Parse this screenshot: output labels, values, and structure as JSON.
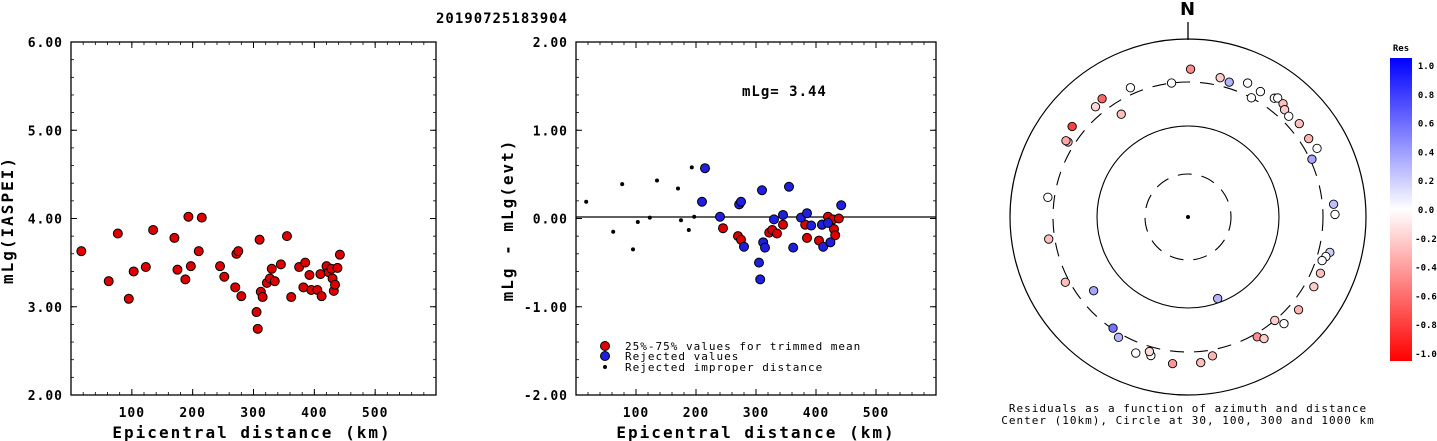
{
  "title": "20190725183904",
  "colors": {
    "trimmed": "#dd0000",
    "rejected": "#1f1fdd",
    "improper": "#000000"
  },
  "chart_data": [
    {
      "type": "scatter",
      "xlabel": "Epicentral distance (km)",
      "ylabel": "mLg(IASPEI)",
      "xlim": [
        0,
        600
      ],
      "ylim": [
        2.0,
        6.0
      ],
      "xticks": [
        "100",
        "200",
        "300",
        "400",
        "500"
      ],
      "yticks": [
        "2.00",
        "3.00",
        "4.00",
        "5.00",
        "6.00"
      ],
      "points": [
        [
          17,
          3.63
        ],
        [
          62,
          3.29
        ],
        [
          77,
          3.83
        ],
        [
          95,
          3.09
        ],
        [
          103,
          3.4
        ],
        [
          123,
          3.45
        ],
        [
          135,
          3.87
        ],
        [
          170,
          3.78
        ],
        [
          175,
          3.42
        ],
        [
          188,
          3.31
        ],
        [
          193,
          4.02
        ],
        [
          197,
          3.46
        ],
        [
          210,
          3.63
        ],
        [
          215,
          4.01
        ],
        [
          245,
          3.46
        ],
        [
          252,
          3.34
        ],
        [
          270,
          3.22
        ],
        [
          272,
          3.6
        ],
        [
          275,
          3.63
        ],
        [
          280,
          3.12
        ],
        [
          305,
          2.94
        ],
        [
          307,
          2.75
        ],
        [
          310,
          3.76
        ],
        [
          312,
          3.17
        ],
        [
          315,
          3.11
        ],
        [
          322,
          3.27
        ],
        [
          327,
          3.32
        ],
        [
          330,
          3.43
        ],
        [
          335,
          3.29
        ],
        [
          345,
          3.48
        ],
        [
          355,
          3.8
        ],
        [
          362,
          3.11
        ],
        [
          375,
          3.45
        ],
        [
          382,
          3.22
        ],
        [
          385,
          3.5
        ],
        [
          392,
          3.36
        ],
        [
          395,
          3.19
        ],
        [
          405,
          3.19
        ],
        [
          410,
          3.37
        ],
        [
          412,
          3.12
        ],
        [
          420,
          3.46
        ],
        [
          424,
          3.39
        ],
        [
          428,
          3.43
        ],
        [
          430,
          3.32
        ],
        [
          432,
          3.18
        ],
        [
          434,
          3.25
        ],
        [
          438,
          3.44
        ],
        [
          442,
          3.59
        ]
      ]
    },
    {
      "type": "scatter",
      "xlabel": "Epicentral distance (km)",
      "ylabel": "mLg - mLg(evt)",
      "xlim": [
        0,
        600
      ],
      "ylim": [
        -2.0,
        2.0
      ],
      "xticks": [
        "100",
        "200",
        "300",
        "400",
        "500"
      ],
      "yticks": [
        "-2.00",
        "-1.00",
        "0.00",
        "1.00",
        "2.00"
      ],
      "annotation": "mLg= 3.44",
      "legend_position": "bottom-left",
      "series": [
        {
          "name": "25%-75% values for trimmed mean",
          "points": [
            [
              245,
              -0.11
            ],
            [
              270,
              -0.2
            ],
            [
              275,
              -0.24
            ],
            [
              322,
              -0.16
            ],
            [
              327,
              -0.13
            ],
            [
              335,
              -0.17
            ],
            [
              345,
              -0.07
            ],
            [
              382,
              -0.07
            ],
            [
              385,
              -0.22
            ],
            [
              405,
              -0.25
            ],
            [
              410,
              -0.07
            ],
            [
              420,
              0.02
            ],
            [
              424,
              -0.05
            ],
            [
              428,
              -0.01
            ],
            [
              430,
              -0.12
            ],
            [
              432,
              -0.19
            ],
            [
              438,
              0.0
            ]
          ]
        },
        {
          "name": "Rejected values",
          "points": [
            [
              210,
              0.19
            ],
            [
              215,
              0.57
            ],
            [
              240,
              0.02
            ],
            [
              272,
              0.16
            ],
            [
              275,
              0.19
            ],
            [
              280,
              -0.32
            ],
            [
              305,
              -0.5
            ],
            [
              307,
              -0.69
            ],
            [
              310,
              0.32
            ],
            [
              312,
              -0.27
            ],
            [
              315,
              -0.33
            ],
            [
              330,
              -0.01
            ],
            [
              345,
              0.04
            ],
            [
              355,
              0.36
            ],
            [
              362,
              -0.33
            ],
            [
              375,
              0.01
            ],
            [
              385,
              0.06
            ],
            [
              392,
              -0.08
            ],
            [
              410,
              -0.07
            ],
            [
              412,
              -0.32
            ],
            [
              420,
              -0.05
            ],
            [
              424,
              -0.27
            ],
            [
              442,
              0.15
            ]
          ]
        },
        {
          "name": "Rejected improper distance",
          "points": [
            [
              17,
              0.19
            ],
            [
              62,
              -0.15
            ],
            [
              77,
              0.39
            ],
            [
              95,
              -0.35
            ],
            [
              103,
              -0.04
            ],
            [
              123,
              0.01
            ],
            [
              135,
              0.43
            ],
            [
              170,
              0.34
            ],
            [
              175,
              -0.02
            ],
            [
              188,
              -0.13
            ],
            [
              193,
              0.58
            ],
            [
              197,
              0.02
            ]
          ]
        }
      ]
    },
    {
      "type": "polar-scatter",
      "north_label": "N",
      "caption_line1": "Residuals as a function of azimuth and distance",
      "caption_line2": "Center (10km), Circle at 30, 100, 300 and 1000 km",
      "colorbar": {
        "title": "Res",
        "ticks": [
          "1.0",
          "0.8",
          "0.6",
          "0.4",
          "0.2",
          "0.0",
          "-0.2",
          "-0.4",
          "-0.6",
          "-0.8",
          "-1.0"
        ]
      },
      "points": [
        {
          "az": 1,
          "dist": 430,
          "res": -0.45
        },
        {
          "az": 24,
          "dist": 415,
          "res": 0.0
        },
        {
          "az": 13,
          "dist": 375,
          "res": -0.2
        },
        {
          "az": -7,
          "dist": 300,
          "res": 0.0
        },
        {
          "az": 17,
          "dist": 355,
          "res": 0.3
        },
        {
          "az": -24,
          "dist": 360,
          "res": 0.0
        },
        {
          "az": -36,
          "dist": 410,
          "res": -0.6
        },
        {
          "az": 28,
          "dist": 300,
          "res": 0.0
        },
        {
          "az": -52,
          "dist": 420,
          "res": -0.75
        },
        {
          "az": -58,
          "dist": 360,
          "res": -0.2
        },
        {
          "az": -33,
          "dist": 220,
          "res": -0.25
        },
        {
          "az": 30,
          "dist": 395,
          "res": 0.0
        },
        {
          "az": 36,
          "dist": 418,
          "res": 0.0
        },
        {
          "az": 37,
          "dist": 445,
          "res": 0.0
        },
        {
          "az": 40,
          "dist": 430,
          "res": -0.25
        },
        {
          "az": 42,
          "dist": 390,
          "res": -0.2
        },
        {
          "az": 45,
          "dist": 370,
          "res": 0.0
        },
        {
          "az": 50,
          "dist": 400,
          "res": -0.25
        },
        {
          "az": 57,
          "dist": 385,
          "res": -0.3
        },
        {
          "az": 62,
          "dist": 410,
          "res": 0.0
        },
        {
          "az": 65,
          "dist": 315,
          "res": 0.35
        },
        {
          "az": 85,
          "dist": 410,
          "res": 0.25
        },
        {
          "az": 89,
          "dist": 420,
          "res": 0.0
        },
        {
          "az": 104,
          "dist": 410,
          "res": 0.2
        },
        {
          "az": 106,
          "dist": 380,
          "res": 0.0
        },
        {
          "az": 108,
          "dist": 355,
          "res": 0.0
        },
        {
          "az": 113,
          "dist": 385,
          "res": -0.25
        },
        {
          "az": 119,
          "dist": 385,
          "res": -0.2
        },
        {
          "az": 130,
          "dist": 390,
          "res": -0.3
        },
        {
          "az": 138,
          "dist": 380,
          "res": 0.0
        },
        {
          "az": 140,
          "dist": 300,
          "res": -0.2
        },
        {
          "az": 150,
          "dist": 330,
          "res": -0.45
        },
        {
          "az": 148,
          "dist": 380,
          "res": -0.2
        },
        {
          "az": 170,
          "dist": 355,
          "res": -0.3
        },
        {
          "az": 175,
          "dist": 410,
          "res": -0.25
        },
        {
          "az": 186,
          "dist": 425,
          "res": -0.4
        },
        {
          "az": 195,
          "dist": 380,
          "res": 0.0
        },
        {
          "az": 196,
          "dist": 345,
          "res": -0.15
        },
        {
          "az": 210,
          "dist": 335,
          "res": 0.3
        },
        {
          "az": 214,
          "dist": 293,
          "res": 0.55
        },
        {
          "az": 232,
          "dist": 205,
          "res": 0.35
        },
        {
          "az": 242,
          "dist": 335,
          "res": -0.25
        },
        {
          "az": 261,
          "dist": 355,
          "res": -0.25
        },
        {
          "az": 278,
          "dist": 360,
          "res": 0.0
        },
        {
          "az": 160,
          "dist": 90,
          "res": 0.3
        },
        {
          "az": 201,
          "dist": 405,
          "res": 0.0
        },
        {
          "az": 302,
          "dist": 385,
          "res": -0.35
        },
        {
          "az": 320,
          "dist": 385,
          "res": -0.15
        }
      ]
    }
  ]
}
